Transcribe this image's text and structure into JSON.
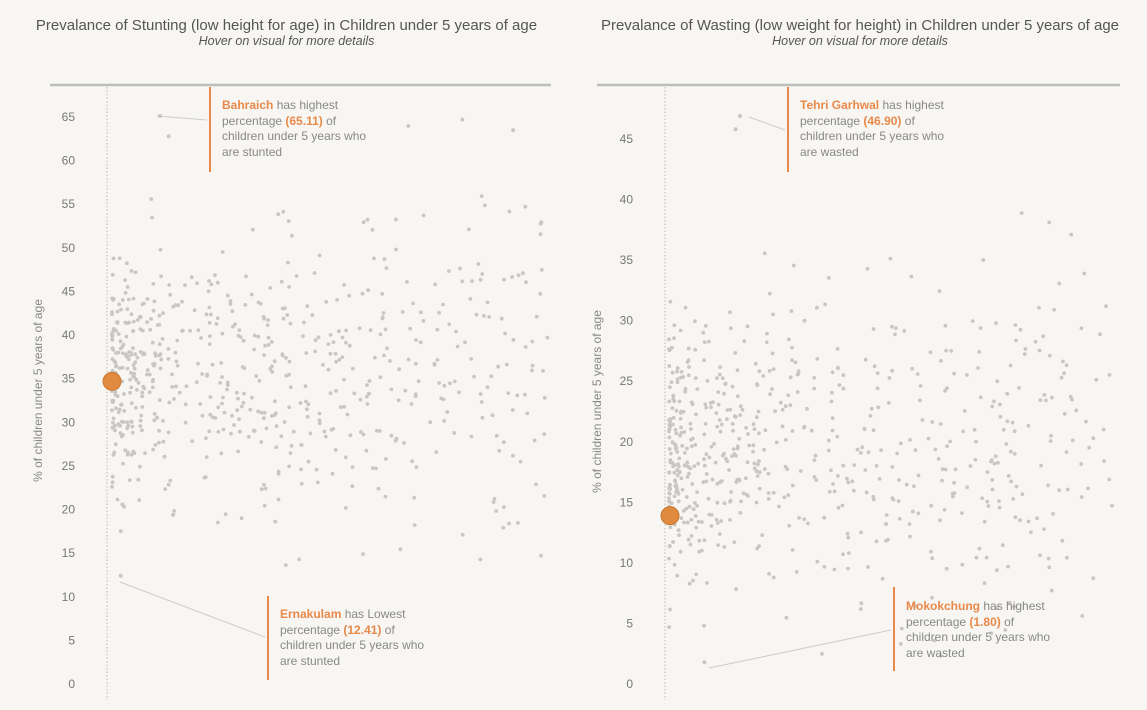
{
  "colors": {
    "background": "#f7f6f2",
    "dot": "#c9c7c3",
    "accent": "#e8894a",
    "highlight": "#e08a40",
    "rule": "#bdbdbd",
    "text": "#666666"
  },
  "chart_data": [
    {
      "id": "stunting",
      "type": "scatter",
      "title": "Prevalance of Stunting (low height for age) in Children under 5 years of age",
      "subtitle": "Hover on visual for more details",
      "xlabel": "",
      "ylabel": "% of children under 5 years of age",
      "yticks": [
        0,
        5,
        10,
        15,
        20,
        25,
        30,
        35,
        40,
        45,
        50,
        55,
        60,
        65
      ],
      "ylim": [
        0,
        68
      ],
      "highlight_point": {
        "x": 0,
        "y": 34.7
      },
      "annotations": {
        "top": {
          "name": "Bahraich",
          "t1": "has highest",
          "t2": "percentage",
          "value": "(65.11)",
          "t3": "of",
          "t4": "children under 5 years who",
          "t5": "are stunted"
        },
        "bottom": {
          "name": "Ernakulam",
          "t1": "has Lowest",
          "t2": "percentage",
          "value": "(12.41)",
          "t3": "of",
          "t4": "children under 5 years who",
          "t5": "are stunted"
        }
      },
      "points": {
        "n": 640,
        "min": 12.41,
        "max": 65.11,
        "center": 36,
        "spread": 9.5,
        "seed": 7
      }
    },
    {
      "id": "wasting",
      "type": "scatter",
      "title": "Prevalance of Wasting (low weight for height) in Children under 5 years of age",
      "subtitle": "Hover on visual for more details",
      "xlabel": "",
      "ylabel": "% of children under 5 years of age",
      "yticks": [
        0,
        5,
        10,
        15,
        20,
        25,
        30,
        35,
        40,
        45
      ],
      "ylim": [
        0,
        49
      ],
      "highlight_point": {
        "x": 0,
        "y": 13.9
      },
      "annotations": {
        "top": {
          "name": "Tehri Garhwal",
          "t1": "has highest",
          "t2": "percentage",
          "value": "(46.90)",
          "t3": "of",
          "t4": "children under 5 years who",
          "t5": "are wasted"
        },
        "bottom": {
          "name": "Mokokchung",
          "t1": "has highest",
          "t2": "percentage",
          "value": "(1.80)",
          "t3": "of",
          "t4": "children under 5 years who",
          "t5": "are wasted"
        }
      },
      "points": {
        "n": 640,
        "min": 1.8,
        "max": 46.9,
        "center": 19,
        "spread": 7.5,
        "seed": 19
      }
    }
  ]
}
